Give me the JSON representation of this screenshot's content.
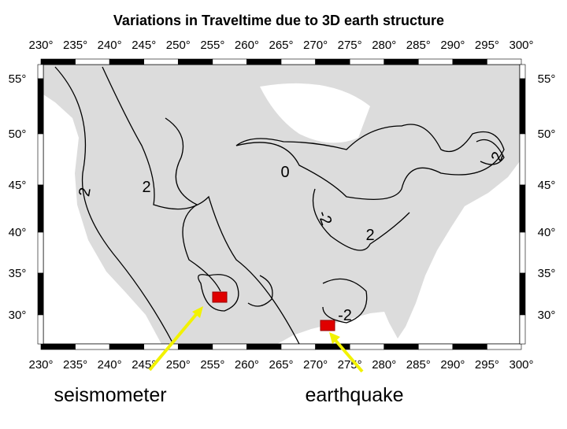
{
  "title": "Variations in Traveltime due to 3D earth structure",
  "map": {
    "lon_labels": [
      "230°",
      "235°",
      "240°",
      "245°",
      "250°",
      "255°",
      "260°",
      "265°",
      "270°",
      "275°",
      "280°",
      "285°",
      "290°",
      "295°",
      "300°"
    ],
    "lat_labels": [
      "55°",
      "50°",
      "45°",
      "40°",
      "35°",
      "30°"
    ],
    "contour_labels": [
      "0",
      "2",
      "2",
      "2",
      "-2",
      "2",
      "-2"
    ]
  },
  "annotations": [
    "seismometer",
    "earthquake"
  ]
}
